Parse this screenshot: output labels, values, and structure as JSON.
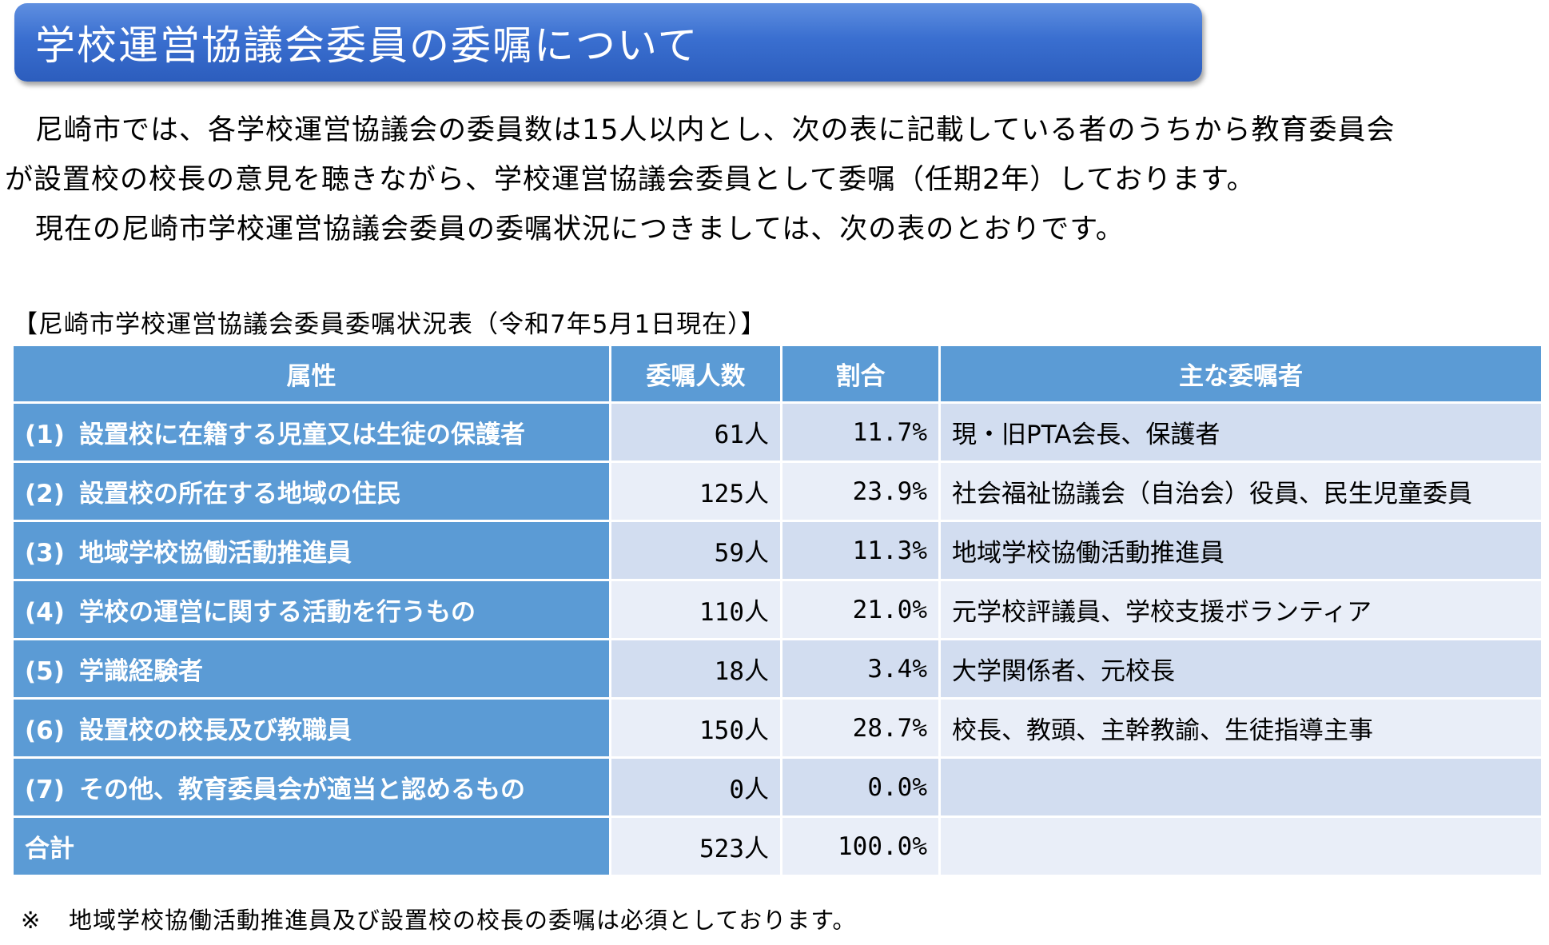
{
  "header": {
    "title": "学校運営協議会委員の委嘱について"
  },
  "intro": {
    "paragraph1_line1": "尼崎市では、各学校運営協議会の委員数は15人以内とし、次の表に記載している者のうちから教育委員会",
    "paragraph1_line2": "が設置校の校長の意見を聴きながら、学校運営協議会委員として委嘱（任期2年）しております。",
    "paragraph2": "現在の尼崎市学校運営協議会委員の委嘱状況につきましては、次の表のとおりです。"
  },
  "table": {
    "caption": "【尼崎市学校運営協議会委員委嘱状況表（令和7年5月1日現在）】",
    "headers": {
      "attribute": "属性",
      "count": "委嘱人数",
      "ratio": "割合",
      "main": "主な委嘱者"
    },
    "rows": [
      {
        "num": "(1)",
        "attribute": "設置校に在籍する児童又は生徒の保護者",
        "count": "61人",
        "ratio": "11.7%",
        "main": "現・旧PTA会長、保護者"
      },
      {
        "num": "(2)",
        "attribute": "設置校の所在する地域の住民",
        "count": "125人",
        "ratio": "23.9%",
        "main": "社会福祉協議会（自治会）役員、民生児童委員"
      },
      {
        "num": "(3)",
        "attribute": "地域学校協働活動推進員",
        "count": "59人",
        "ratio": "11.3%",
        "main": "地域学校協働活動推進員"
      },
      {
        "num": "(4)",
        "attribute": "学校の運営に関する活動を行うもの",
        "count": "110人",
        "ratio": "21.0%",
        "main": "元学校評議員、学校支援ボランティア"
      },
      {
        "num": "(5)",
        "attribute": "学識経験者",
        "count": "18人",
        "ratio": "3.4%",
        "main": "大学関係者、元校長"
      },
      {
        "num": "(6)",
        "attribute": "設置校の校長及び教職員",
        "count": "150人",
        "ratio": "28.7%",
        "main": "校長、教頭、主幹教諭、生徒指導主事"
      },
      {
        "num": "(7)",
        "attribute": "その他、教育委員会が適当と認めるもの",
        "count": "0人",
        "ratio": "0.0%",
        "main": ""
      }
    ],
    "total": {
      "label": "合計",
      "count": "523人",
      "ratio": "100.0%",
      "main": ""
    }
  },
  "footnote": {
    "mark": "※",
    "text": "地域学校協働活動推進員及び設置校の校長の委嘱は必須としております。"
  },
  "colors": {
    "title_bar": "#3a6fd0",
    "table_header": "#5b9bd5",
    "row_odd": "#d2ddf0",
    "row_even": "#e9eef8"
  }
}
